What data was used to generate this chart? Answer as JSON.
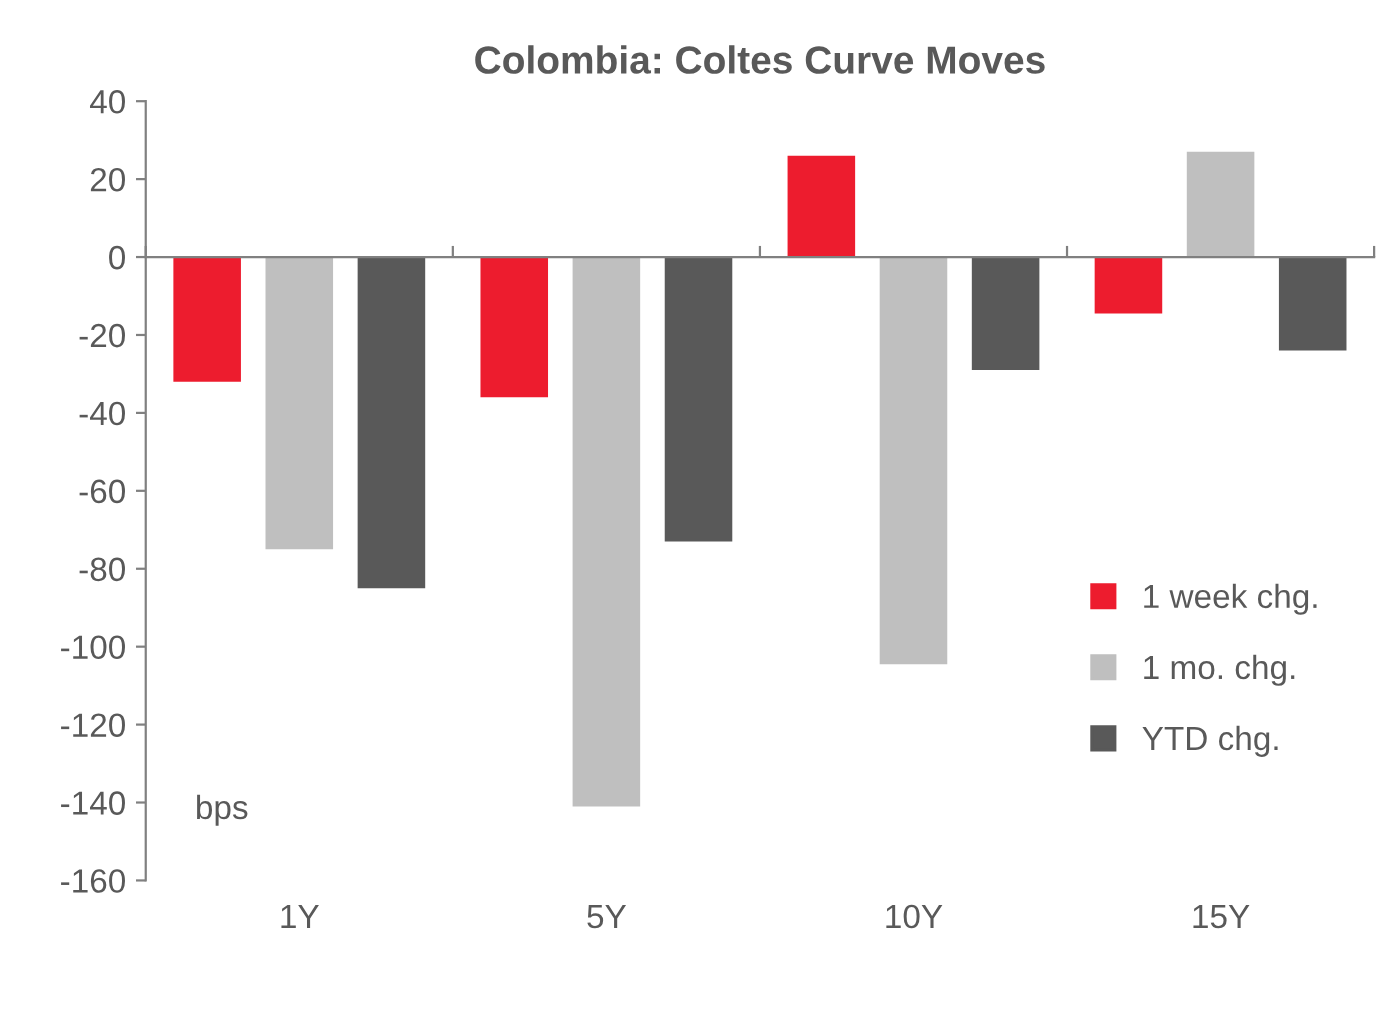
{
  "chart_data": {
    "type": "bar",
    "title": "Colombia: Coltes Curve Moves",
    "categories": [
      "1Y",
      "5Y",
      "10Y",
      "15Y"
    ],
    "series": [
      {
        "name": "1 week chg.",
        "color": "#ed1c2e",
        "values": [
          -32,
          -36,
          26,
          -14.5
        ]
      },
      {
        "name": "1 mo. chg.",
        "color": "#bfbfbf",
        "values": [
          -75,
          -141,
          -104.5,
          27
        ]
      },
      {
        "name": "YTD chg.",
        "color": "#595959",
        "values": [
          -85,
          -73,
          -29,
          -24
        ]
      }
    ],
    "ylim": [
      -160,
      40
    ],
    "yticks": [
      -160,
      -140,
      -120,
      -100,
      -80,
      -60,
      -40,
      -20,
      0,
      20,
      40
    ],
    "annotations": [
      "bps"
    ],
    "legend": "bottom right"
  }
}
